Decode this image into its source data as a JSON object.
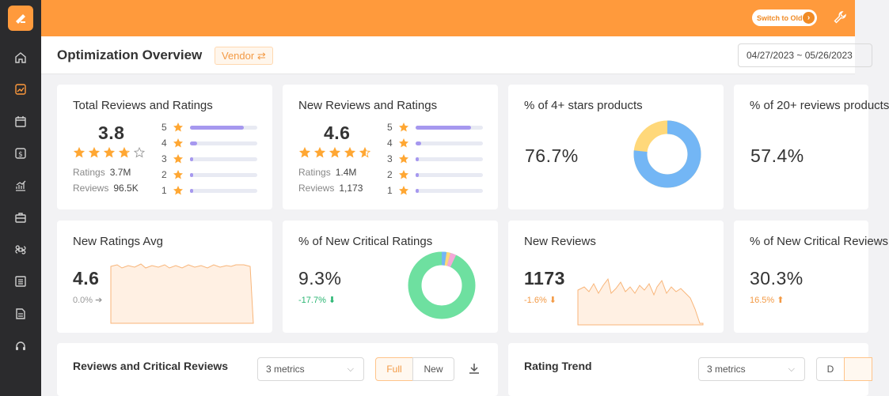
{
  "header": {
    "switch_label": "Switch to Old"
  },
  "page": {
    "title": "Optimization Overview",
    "vendor_tag": "Vendor ⇄",
    "date_range": "04/27/2023 ~ 05/26/2023"
  },
  "cards": {
    "total_reviews": {
      "title": "Total Reviews and Ratings",
      "score": "3.8",
      "star_fill": 3.8,
      "ratings_label": "Ratings",
      "ratings_value": "3.7M",
      "reviews_label": "Reviews",
      "reviews_value": "96.5K",
      "bars": [
        {
          "star": "5",
          "fraction": 0.8
        },
        {
          "star": "4",
          "fraction": 0.1
        },
        {
          "star": "3",
          "fraction": 0.03
        },
        {
          "star": "2",
          "fraction": 0.02
        },
        {
          "star": "1",
          "fraction": 0.03
        }
      ]
    },
    "new_reviews_ratings": {
      "title": "New Reviews and Ratings",
      "score": "4.6",
      "star_fill": 4.6,
      "ratings_label": "Ratings",
      "ratings_value": "1.4M",
      "reviews_label": "Reviews",
      "reviews_value": "1,173",
      "bars": [
        {
          "star": "5",
          "fraction": 0.82
        },
        {
          "star": "4",
          "fraction": 0.08
        },
        {
          "star": "3",
          "fraction": 0.03
        },
        {
          "star": "2",
          "fraction": 0.02
        },
        {
          "star": "1",
          "fraction": 0.02
        }
      ]
    },
    "four_star_pct": {
      "title": "% of 4+ stars products",
      "value": "76.7%",
      "fraction": 0.767
    },
    "twenty_reviews_pct": {
      "title": "% of 20+ reviews products",
      "value": "57.4%"
    },
    "new_ratings_avg": {
      "title": "New Ratings Avg",
      "value": "4.6",
      "delta": "0.0% ➔"
    },
    "new_critical_ratings": {
      "title": "% of New Critical Ratings",
      "value": "9.3%",
      "delta": "-17.7% ⬇"
    },
    "new_reviews": {
      "title": "New Reviews",
      "value": "1173",
      "delta": "-1.6% ⬇"
    },
    "new_critical_reviews": {
      "title": "% of New Critical Reviews",
      "value": "30.3%",
      "delta": "16.5% ⬆"
    }
  },
  "bottom": {
    "reviews_critical": {
      "title": "Reviews and Critical Reviews",
      "metrics": "3 metrics",
      "full": "Full",
      "new": "New"
    },
    "rating_trend": {
      "title": "Rating Trend",
      "metrics": "3 metrics",
      "d": "D"
    }
  },
  "colors": {
    "accent": "#ff9a3c",
    "donut_blue": "#73b6f5",
    "donut_yellow": "#ffd87a",
    "donut_green": "#6ee0a0",
    "bar_purple": "#a698ef"
  }
}
